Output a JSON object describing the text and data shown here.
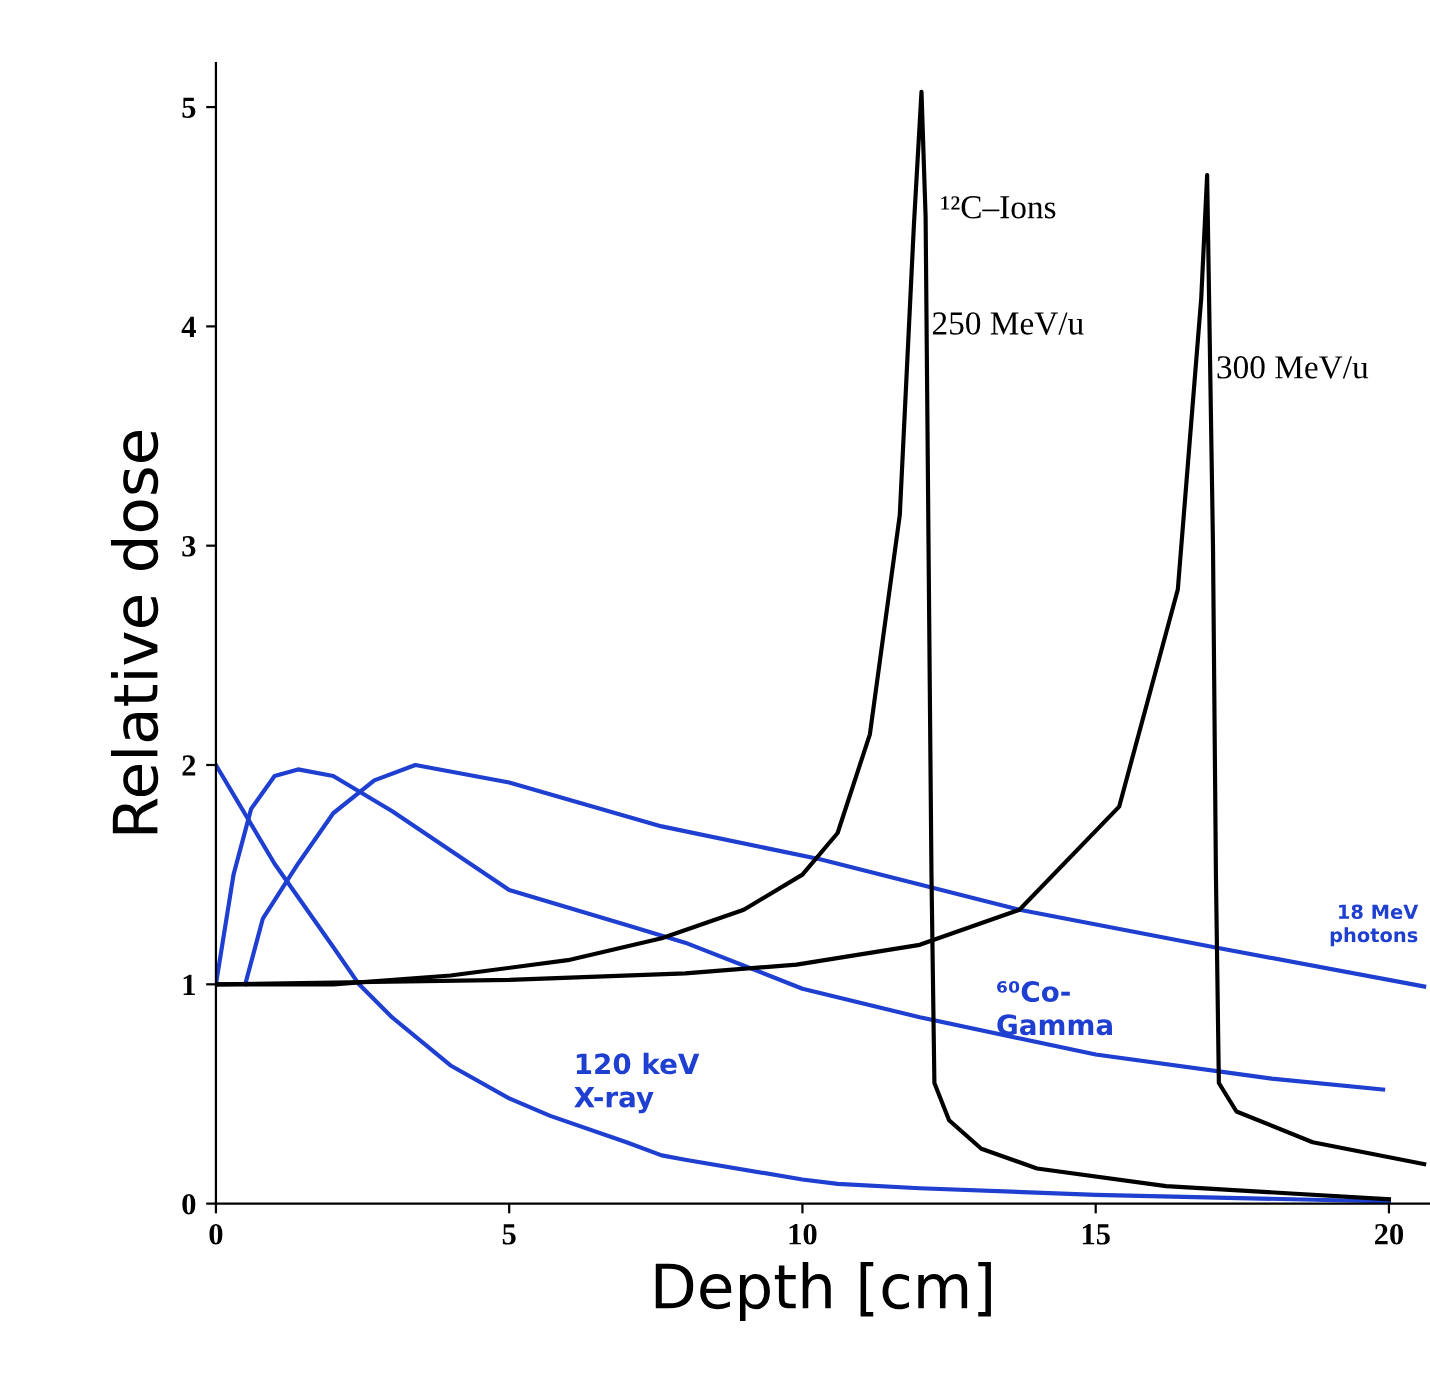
{
  "chart_data": {
    "type": "line",
    "xlabel": "Depth [cm]",
    "ylabel": "Relative dose",
    "xlim": [
      0,
      20.7
    ],
    "ylim": [
      0,
      5.2
    ],
    "xticks": [
      0,
      5,
      10,
      15,
      20
    ],
    "yticks": [
      0,
      1,
      2,
      3,
      4,
      5
    ],
    "grid": false,
    "legend": false,
    "marker": "none",
    "line_style": "solid",
    "annotations": [
      "¹²C–Ions"
    ],
    "series": [
      {
        "name": "120 keV\nX-ray",
        "color": "#1f3fd0",
        "x": [
          0,
          1,
          2,
          2.44,
          3,
          4,
          5,
          5.7,
          7,
          7.6,
          8,
          10,
          10.6,
          12,
          15,
          20
        ],
        "values": [
          2,
          1.55,
          1.17,
          1.0,
          0.85,
          0.63,
          0.48,
          0.4,
          0.28,
          0.22,
          0.2,
          0.11,
          0.09,
          0.07,
          0.04,
          0.01
        ]
      },
      {
        "name": "⁶⁰Co-\nGamma",
        "color": "#1f3fd0",
        "x": [
          0,
          0.3,
          0.6,
          1,
          1.4,
          2,
          3,
          4,
          5,
          6,
          7,
          8,
          10,
          12,
          15,
          18,
          19.9
        ],
        "values": [
          1,
          1.5,
          1.8,
          1.95,
          1.98,
          1.95,
          1.79,
          1.61,
          1.43,
          1.35,
          1.27,
          1.19,
          0.98,
          0.85,
          0.68,
          0.57,
          0.52
        ]
      },
      {
        "name": "18 MeV\nphotons",
        "color": "#1f3fd0",
        "x": [
          0.5,
          0.8,
          1.4,
          2,
          2.7,
          3.4,
          5,
          7.6,
          10.3,
          13.7,
          17,
          20.6
        ],
        "values": [
          1.0,
          1.3,
          1.55,
          1.78,
          1.93,
          2.0,
          1.92,
          1.72,
          1.57,
          1.34,
          1.17,
          0.99
        ]
      },
      {
        "name": "250 MeV/u",
        "color": "#000000",
        "x": [
          0,
          2,
          4,
          6,
          7.6,
          9,
          10,
          10.6,
          11.15,
          11.66,
          11.9,
          12.03,
          12.1,
          12.15,
          12.2,
          12.25,
          12.5,
          13.05,
          14,
          16.2,
          20
        ],
        "values": [
          1,
          1.0,
          1.04,
          1.11,
          1.21,
          1.34,
          1.5,
          1.69,
          2.14,
          3.14,
          4.46,
          5.07,
          4.5,
          3.0,
          1.5,
          0.55,
          0.38,
          0.25,
          0.16,
          0.08,
          0.02
        ]
      },
      {
        "name": "300 MeV/u",
        "color": "#000000",
        "x": [
          0,
          5,
          8,
          9.9,
          12,
          13.7,
          15.4,
          16.4,
          16.8,
          16.9,
          17.0,
          17.05,
          17.1,
          17.4,
          18.7,
          20.6
        ],
        "values": [
          1,
          1.02,
          1.05,
          1.09,
          1.18,
          1.34,
          1.81,
          2.8,
          4.13,
          4.69,
          3.0,
          1.5,
          0.55,
          0.42,
          0.28,
          0.18
        ]
      }
    ]
  }
}
